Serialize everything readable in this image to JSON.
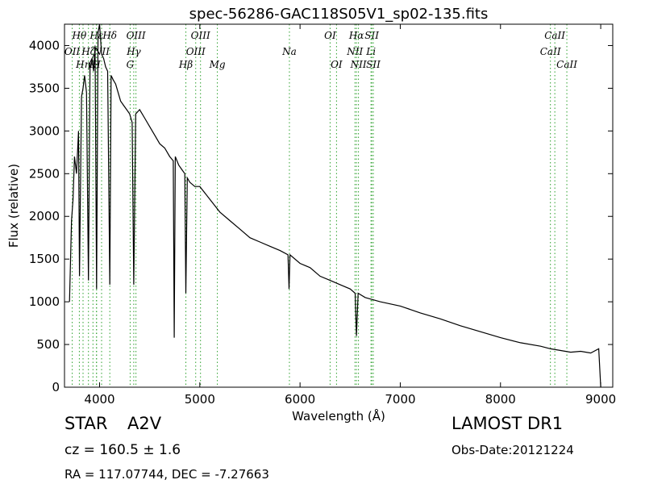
{
  "chart_data": {
    "type": "line",
    "title": "spec-56286-GAC118S05V1_sp02-135.fits",
    "xlabel": "Wavelength (Å)",
    "ylabel": "Flux (relative)",
    "xlim": [
      3650,
      9120
    ],
    "ylim": [
      0,
      4250
    ],
    "xticks": [
      4000,
      5000,
      6000,
      7000,
      8000,
      9000
    ],
    "yticks": [
      0,
      500,
      1000,
      1500,
      2000,
      2500,
      3000,
      3500,
      4000
    ],
    "grid": false,
    "line_color": "#000000",
    "marker_color": "#2ca02c",
    "series": [
      {
        "x": [
          3700,
          3720,
          3735,
          3750,
          3770,
          3790,
          3800,
          3820,
          3835,
          3850,
          3870,
          3889,
          3905,
          3925,
          3940,
          3955,
          3970,
          3985,
          4000,
          4020,
          4040,
          4060,
          4080,
          4102,
          4115,
          4135,
          4160,
          4185,
          4210,
          4240,
          4270,
          4300,
          4325,
          4341,
          4360,
          4400,
          4450,
          4500,
          4550,
          4600,
          4650,
          4700,
          4735,
          4745,
          4755,
          4790,
          4820,
          4850,
          4861,
          4875,
          4900,
          4950,
          5000,
          5100,
          5200,
          5300,
          5400,
          5500,
          5600,
          5700,
          5800,
          5880,
          5890,
          5900,
          6000,
          6100,
          6200,
          6300,
          6400,
          6500,
          6550,
          6563,
          6580,
          6650,
          6800,
          7000,
          7200,
          7400,
          7600,
          7800,
          8000,
          8200,
          8400,
          8500,
          8600,
          8700,
          8800,
          8900,
          8980,
          9000
        ],
        "y": [
          1000,
          1950,
          2200,
          2700,
          2500,
          3000,
          1300,
          3400,
          3500,
          3650,
          3450,
          1250,
          3800,
          3850,
          3700,
          4000,
          1150,
          4150,
          4250,
          3900,
          3850,
          3750,
          3700,
          1200,
          3650,
          3600,
          3550,
          3450,
          3350,
          3300,
          3250,
          3200,
          3100,
          1200,
          3200,
          3250,
          3150,
          3050,
          2950,
          2850,
          2800,
          2700,
          2650,
          580,
          2700,
          2600,
          2550,
          2500,
          1100,
          2450,
          2400,
          2350,
          2350,
          2200,
          2050,
          1950,
          1850,
          1750,
          1700,
          1650,
          1600,
          1550,
          1150,
          1550,
          1450,
          1400,
          1300,
          1250,
          1200,
          1150,
          1100,
          600,
          1100,
          1050,
          1000,
          950,
          870,
          800,
          720,
          650,
          580,
          520,
          480,
          450,
          430,
          410,
          420,
          400,
          450,
          0
        ]
      }
    ],
    "lines": [
      {
        "label": "OII",
        "x": 3727,
        "row": 2,
        "anchor": "middle"
      },
      {
        "label": "Hθ",
        "x": 3798,
        "row": 1,
        "anchor": "middle"
      },
      {
        "label": "Hη",
        "x": 3835,
        "row": 3,
        "anchor": "middle"
      },
      {
        "label": "Hζ",
        "x": 3889,
        "row": 2,
        "anchor": "middle"
      },
      {
        "label": "Hε",
        "x": 3970,
        "row": 1,
        "anchor": "middle"
      },
      {
        "label": "K",
        "x": 3934,
        "row": 3,
        "anchor": "middle"
      },
      {
        "label": "NII",
        "x": 4020,
        "row": 2,
        "anchor": "middle"
      },
      {
        "label": "H",
        "x": 3969,
        "row": 3,
        "anchor": "middle"
      },
      {
        "label": "Hδ",
        "x": 4102,
        "row": 1,
        "anchor": "middle"
      },
      {
        "label": "Hγ",
        "x": 4341,
        "row": 2,
        "anchor": "middle"
      },
      {
        "label": "G",
        "x": 4305,
        "row": 3,
        "anchor": "middle"
      },
      {
        "label": "OIII",
        "x": 4363,
        "row": 1,
        "anchor": "middle"
      },
      {
        "label": "Hβ",
        "x": 4861,
        "row": 3,
        "anchor": "middle"
      },
      {
        "label": "OIII",
        "x": 4959,
        "row": 2,
        "anchor": "middle"
      },
      {
        "label": "OIII",
        "x": 5007,
        "row": 1,
        "anchor": "middle"
      },
      {
        "label": "Mg",
        "x": 5175,
        "row": 3,
        "anchor": "middle"
      },
      {
        "label": "Na",
        "x": 5894,
        "row": 2,
        "anchor": "middle"
      },
      {
        "label": "OI",
        "x": 6300,
        "row": 1,
        "anchor": "middle"
      },
      {
        "label": "OI",
        "x": 6364,
        "row": 3,
        "anchor": "middle"
      },
      {
        "label": "NII",
        "x": 6548,
        "row": 2,
        "anchor": "middle"
      },
      {
        "label": "Hα",
        "x": 6563,
        "row": 1,
        "anchor": "middle"
      },
      {
        "label": "NII",
        "x": 6583,
        "row": 3,
        "anchor": "middle"
      },
      {
        "label": "Li",
        "x": 6708,
        "row": 2,
        "anchor": "middle"
      },
      {
        "label": "SII",
        "x": 6716,
        "row": 1,
        "anchor": "middle"
      },
      {
        "label": "SII",
        "x": 6731,
        "row": 3,
        "anchor": "middle"
      },
      {
        "label": "CaII",
        "x": 8498,
        "row": 2,
        "anchor": "middle"
      },
      {
        "label": "CaII",
        "x": 8542,
        "row": 1,
        "anchor": "middle"
      },
      {
        "label": "CaII",
        "x": 8662,
        "row": 3,
        "anchor": "middle"
      }
    ]
  },
  "info": {
    "object_class": "STAR",
    "subclass": "A2V",
    "redshift": "cz = 160.5 ± 1.6",
    "coords": "RA = 117.07744, DEC = -7.27663",
    "survey": "LAMOST DR1",
    "obs_date": "Obs-Date:20121224"
  }
}
